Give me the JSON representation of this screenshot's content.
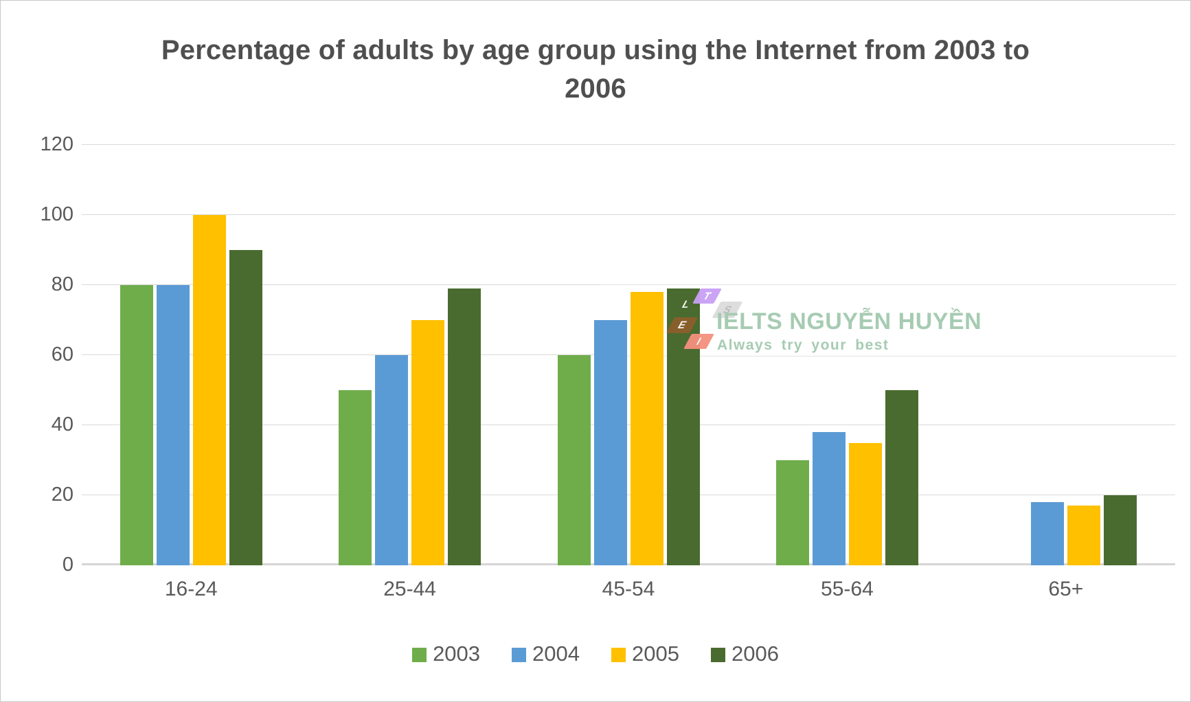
{
  "title_lines": [
    "Percentage of adults by age group using the Internet from 2003 to",
    "2006"
  ],
  "chart_data": {
    "type": "bar",
    "title": "Percentage of adults by age group using the Internet from 2003 to 2006",
    "categories": [
      "16-24",
      "25-44",
      "45-54",
      "55-64",
      "65+"
    ],
    "series": [
      {
        "name": "2003",
        "color": "#6FAD4B",
        "values": [
          80,
          50,
          60,
          30,
          null
        ]
      },
      {
        "name": "2004",
        "color": "#5B9BD5",
        "values": [
          80,
          60,
          70,
          38,
          18
        ]
      },
      {
        "name": "2005",
        "color": "#FFC000",
        "values": [
          100,
          70,
          78,
          35,
          17
        ]
      },
      {
        "name": "2006",
        "color": "#4A6B2F",
        "values": [
          90,
          79,
          79,
          50,
          20
        ]
      }
    ],
    "xlabel": "",
    "ylabel": "",
    "ylim": [
      0,
      120
    ],
    "yticks": [
      0,
      20,
      40,
      60,
      80,
      100,
      120
    ],
    "grid": true,
    "legend_position": "bottom"
  },
  "watermark": {
    "brand": "IELTS NGUYỄN HUYỀN",
    "tagline": "Always try your best",
    "text_color": "#A6CBB2",
    "band_color": "rgba(255,255,255,0.9)",
    "logo_letters": [
      {
        "letter": "T",
        "color": "#C9A0F6"
      },
      {
        "letter": "S",
        "color": "#DCDCDC"
      },
      {
        "letter": "L",
        "color": "transparent"
      },
      {
        "letter": "E",
        "color": "#8C5F2B"
      },
      {
        "letter": "I",
        "color": "#F5907E"
      }
    ]
  },
  "colors": {
    "title_text": "#4F4F4F",
    "axis_text": "#595959",
    "gridline": "#D9D9D9",
    "axis_line": "#D6D4D4",
    "background": "#FFFFFF"
  }
}
